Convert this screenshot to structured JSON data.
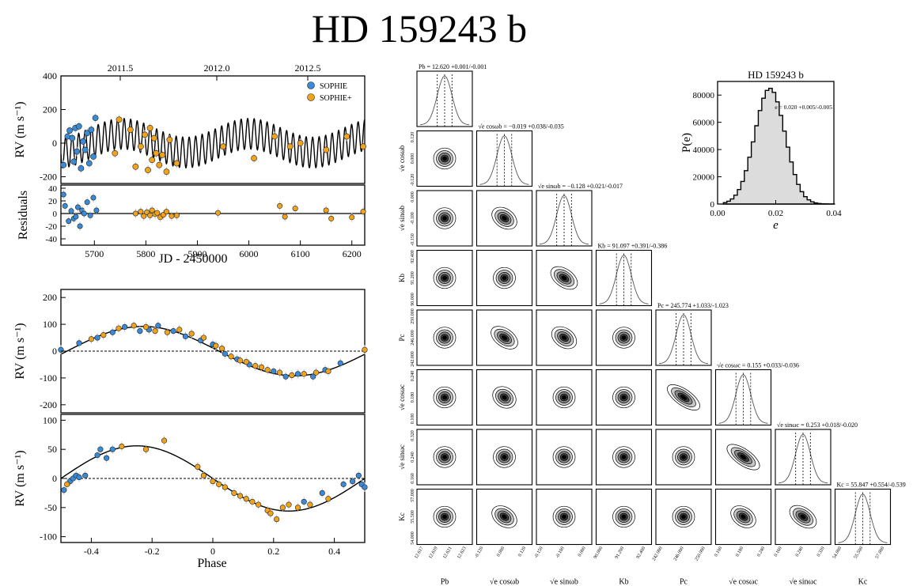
{
  "page": {
    "title": "HD 159243 b"
  },
  "chart_data": [
    {
      "id": "rv_time",
      "type": "scatter",
      "top_axis_ticks": [
        "2011.5",
        "2012.0",
        "2012.5"
      ],
      "ylabel": "RV (m s⁻¹)",
      "xlim": [
        5635,
        6225
      ],
      "ylim": [
        -240,
        400
      ],
      "yticks": [
        -200,
        0,
        200,
        400
      ],
      "legend": {
        "position": "top-right",
        "entries": [
          "SOPHIE",
          "SOPHIE+"
        ]
      },
      "model": {
        "K1": 91.1,
        "P1": 12.62,
        "K2": 55.8,
        "P2": 245.8
      },
      "series": [
        {
          "name": "SOPHIE",
          "color": "#3a8ad6",
          "x": [
            5640,
            5648,
            5652,
            5657,
            5660,
            5663,
            5666,
            5670,
            5674,
            5678,
            5682,
            5686,
            5690,
            5694,
            5698,
            5702
          ],
          "y": [
            -130,
            40,
            75,
            30,
            -110,
            90,
            -50,
            100,
            -150,
            10,
            -40,
            60,
            -120,
            80,
            -80,
            150
          ]
        },
        {
          "name": "SOPHIE+",
          "color": "#f0a31c",
          "x": [
            5740,
            5748,
            5770,
            5780,
            5790,
            5798,
            5804,
            5808,
            5812,
            5816,
            5820,
            5826,
            5832,
            5840,
            5846,
            5860,
            5950,
            6010,
            6050,
            6080,
            6100,
            6150,
            6190,
            6222
          ],
          "y": [
            -60,
            140,
            80,
            -140,
            -20,
            50,
            -160,
            90,
            -100,
            30,
            -60,
            -130,
            -70,
            -170,
            20,
            -120,
            -20,
            -90,
            40,
            -20,
            0,
            -40,
            40,
            -20
          ]
        }
      ]
    },
    {
      "id": "residuals",
      "type": "scatter",
      "xlabel": "JD - 2450000",
      "ylabel": "Residuals",
      "xlim": [
        5635,
        6225
      ],
      "ylim": [
        -50,
        45
      ],
      "xticks": [
        5700,
        5800,
        5900,
        6000,
        6100,
        6200
      ],
      "yticks": [
        -40,
        -20,
        0,
        20,
        40
      ],
      "series": [
        {
          "name": "SOPHIE",
          "color": "#3a8ad6",
          "x": [
            5640,
            5643,
            5650,
            5655,
            5660,
            5664,
            5668,
            5672,
            5676,
            5680,
            5686,
            5692,
            5698,
            5704
          ],
          "y": [
            30,
            12,
            -12,
            4,
            -8,
            -5,
            10,
            -20,
            5,
            0,
            18,
            -3,
            25,
            5
          ]
        },
        {
          "name": "SOPHIE+",
          "color": "#f0a31c",
          "x": [
            5780,
            5790,
            5796,
            5802,
            5808,
            5812,
            5818,
            5822,
            5828,
            5834,
            5840,
            5850,
            5860,
            5940,
            6060,
            6070,
            6090,
            6150,
            6160,
            6200,
            6222
          ],
          "y": [
            0,
            3,
            -4,
            2,
            -3,
            5,
            -1,
            1,
            -6,
            -2,
            3,
            -4,
            -3,
            1,
            12,
            -5,
            8,
            5,
            -8,
            -6,
            3
          ]
        }
      ]
    },
    {
      "id": "phase_b",
      "type": "scatter",
      "ylabel": "RV (m s⁻¹)",
      "xlim": [
        -0.5,
        0.5
      ],
      "ylim": [
        -230,
        230
      ],
      "yticks": [
        -200,
        -100,
        0,
        100,
        200
      ],
      "model": {
        "K": 92,
        "phi0": 0.02
      },
      "series": [
        {
          "name": "SOPHIE",
          "color": "#3a8ad6",
          "x": [
            -0.5,
            -0.44,
            -0.38,
            -0.33,
            -0.29,
            -0.24,
            -0.21,
            -0.18,
            -0.13,
            -0.09,
            -0.04,
            0.0,
            0.04,
            0.08,
            0.12,
            0.2,
            0.24,
            0.28,
            0.33,
            0.37,
            0.42
          ],
          "y": [
            5,
            30,
            50,
            70,
            90,
            75,
            80,
            95,
            75,
            55,
            40,
            25,
            -10,
            -30,
            -50,
            -75,
            -95,
            -85,
            -95,
            -70,
            -45
          ]
        },
        {
          "name": "SOPHIE+",
          "color": "#f0a31c",
          "x": [
            -0.4,
            -0.36,
            -0.31,
            -0.26,
            -0.22,
            -0.19,
            -0.15,
            -0.11,
            -0.07,
            -0.03,
            0.01,
            0.03,
            0.06,
            0.09,
            0.11,
            0.14,
            0.16,
            0.18,
            0.22,
            0.26,
            0.3,
            0.34,
            0.38,
            0.5
          ],
          "y": [
            45,
            60,
            85,
            95,
            90,
            75,
            70,
            80,
            65,
            50,
            20,
            10,
            -20,
            -35,
            -40,
            -55,
            -60,
            -70,
            -80,
            -90,
            -85,
            -80,
            -75,
            5
          ]
        }
      ]
    },
    {
      "id": "phase_c",
      "type": "scatter",
      "xlabel": "Phase",
      "ylabel": "RV (m s⁻¹)",
      "xlim": [
        -0.5,
        0.5
      ],
      "ylim": [
        -110,
        110
      ],
      "xticks": [
        -0.4,
        -0.2,
        0.0,
        0.2,
        0.4
      ],
      "yticks": [
        -100,
        -50,
        0,
        50,
        100
      ],
      "model": {
        "K": 56,
        "phi0": 0.0
      },
      "series": [
        {
          "name": "SOPHIE",
          "color": "#3a8ad6",
          "x": [
            -0.49,
            -0.47,
            -0.46,
            -0.45,
            -0.44,
            -0.42,
            -0.38,
            -0.37,
            -0.35,
            -0.33,
            0.3,
            0.36,
            0.43,
            0.46,
            0.48,
            0.49,
            0.5
          ],
          "y": [
            -20,
            -5,
            0,
            5,
            2,
            5,
            40,
            50,
            35,
            50,
            -40,
            -25,
            -10,
            -5,
            5,
            -10,
            -15
          ]
        },
        {
          "name": "SOPHIE+",
          "color": "#f0a31c",
          "x": [
            -0.48,
            -0.3,
            -0.22,
            -0.16,
            -0.05,
            -0.03,
            0.0,
            0.02,
            0.04,
            0.07,
            0.09,
            0.11,
            0.13,
            0.15,
            0.18,
            0.19,
            0.21,
            0.23,
            0.25,
            0.28,
            0.32,
            0.38
          ],
          "y": [
            -10,
            55,
            50,
            65,
            20,
            5,
            -5,
            -10,
            -15,
            -25,
            -30,
            -35,
            -40,
            -45,
            -55,
            -60,
            -70,
            -50,
            -45,
            -50,
            -45,
            -35
          ]
        }
      ]
    },
    {
      "id": "eccentricity_hist",
      "type": "histogram",
      "title": "HD 159243 b",
      "xlabel": "e",
      "ylabel": "P(e)",
      "annotation": "e = 0.020 +0.005/-0.005",
      "xlim": [
        0.0,
        0.04
      ],
      "ylim": [
        0,
        90000
      ],
      "xticks": [
        "0.00",
        "0.02",
        "0.04"
      ],
      "yticks": [
        0,
        20000,
        40000,
        60000,
        80000
      ],
      "bins_center": 0.018,
      "bins_sigma": 0.0052,
      "peak": 85000
    },
    {
      "id": "corner",
      "type": "corner",
      "parameters": [
        "P_b",
        "√e cos ω_b",
        "√e sin ω_b",
        "K_b",
        "P_c",
        "√e cos ω_c",
        "√e sin ω_c",
        "K_c"
      ],
      "axis_labels": [
        "Pb",
        "√e cosωb",
        "√e sinωb",
        "Kb",
        "Pc",
        "√e cosωc",
        "√e sinωc",
        "Kc"
      ],
      "summaries": [
        "Pb = 12.620 +0.001/-0.001",
        "√e cosωb = −0.019 +0.038/-0.035",
        "√e sinωb = −0.128 +0.021/-0.017",
        "Kb = 91.097 +0.391/-0.386",
        "Pc = 245.774 +1.033/-1.023",
        "√e cosωc = 0.155 +0.033/-0.036",
        "√e sinωc = 0.253 +0.018/-0.020",
        "Kc = 55.847 +0.554/-0.539"
      ],
      "tick_labels": [
        [
          "12.617",
          "12.619",
          "12.621",
          "12.623"
        ],
        [
          "-0.120",
          "0.000",
          "0.120"
        ],
        [
          "-0.150",
          "-0.100",
          "0.000"
        ],
        [
          "90.000",
          "91.200",
          "92.400"
        ],
        [
          "242.000",
          "246.000",
          "250.000"
        ],
        [
          "0.100",
          "0.180",
          "0.240"
        ],
        [
          "0.160",
          "0.240",
          "0.320"
        ],
        [
          "54.000",
          "55.500",
          "57.000"
        ]
      ],
      "correlations": [
        [],
        [
          0.0
        ],
        [
          0.0,
          0.2
        ],
        [
          0.0,
          0.0,
          0.3
        ],
        [
          0.0,
          0.3,
          0.2,
          0.0
        ],
        [
          0.0,
          0.1,
          0.0,
          0.0,
          0.6
        ],
        [
          0.0,
          0.0,
          0.0,
          0.0,
          0.0,
          0.6
        ],
        [
          0.0,
          0.2,
          0.0,
          0.0,
          0.0,
          0.2,
          0.3
        ]
      ]
    }
  ]
}
